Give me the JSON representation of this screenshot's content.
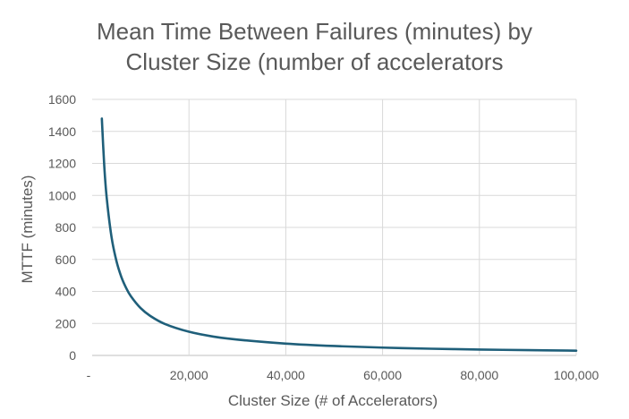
{
  "chart_data": {
    "type": "line",
    "title_lines": [
      "Mean Time Between Failures (minutes) by",
      "Cluster Size (number of accelerators"
    ],
    "xlabel": "Cluster Size (# of Accelerators)",
    "ylabel": "MTTF (minutes)",
    "xlim": [
      0,
      100000
    ],
    "ylim": [
      0,
      1600
    ],
    "x_ticks": [
      0,
      20000,
      40000,
      60000,
      80000,
      100000
    ],
    "x_tick_labels": [
      "-",
      "20,000",
      "40,000",
      "60,000",
      "80,000",
      "100,000"
    ],
    "y_ticks": [
      0,
      200,
      400,
      600,
      800,
      1000,
      1200,
      1400,
      1600
    ],
    "y_tick_labels": [
      "0",
      "200",
      "400",
      "600",
      "800",
      "1000",
      "1200",
      "1400",
      "1600"
    ],
    "grid": true,
    "series": [
      {
        "color": "#1f5f7a",
        "x": [
          2000,
          2500,
          3000,
          4000,
          5000,
          6000,
          7000,
          8000,
          10000,
          12000,
          15000,
          20000,
          25000,
          30000,
          40000,
          50000,
          60000,
          70000,
          80000,
          90000,
          100000
        ],
        "values": [
          1480,
          1184,
          987,
          740,
          592,
          493,
          423,
          370,
          296,
          247,
          197,
          148,
          118,
          99,
          74,
          59,
          49,
          42,
          37,
          33,
          30
        ]
      }
    ]
  }
}
